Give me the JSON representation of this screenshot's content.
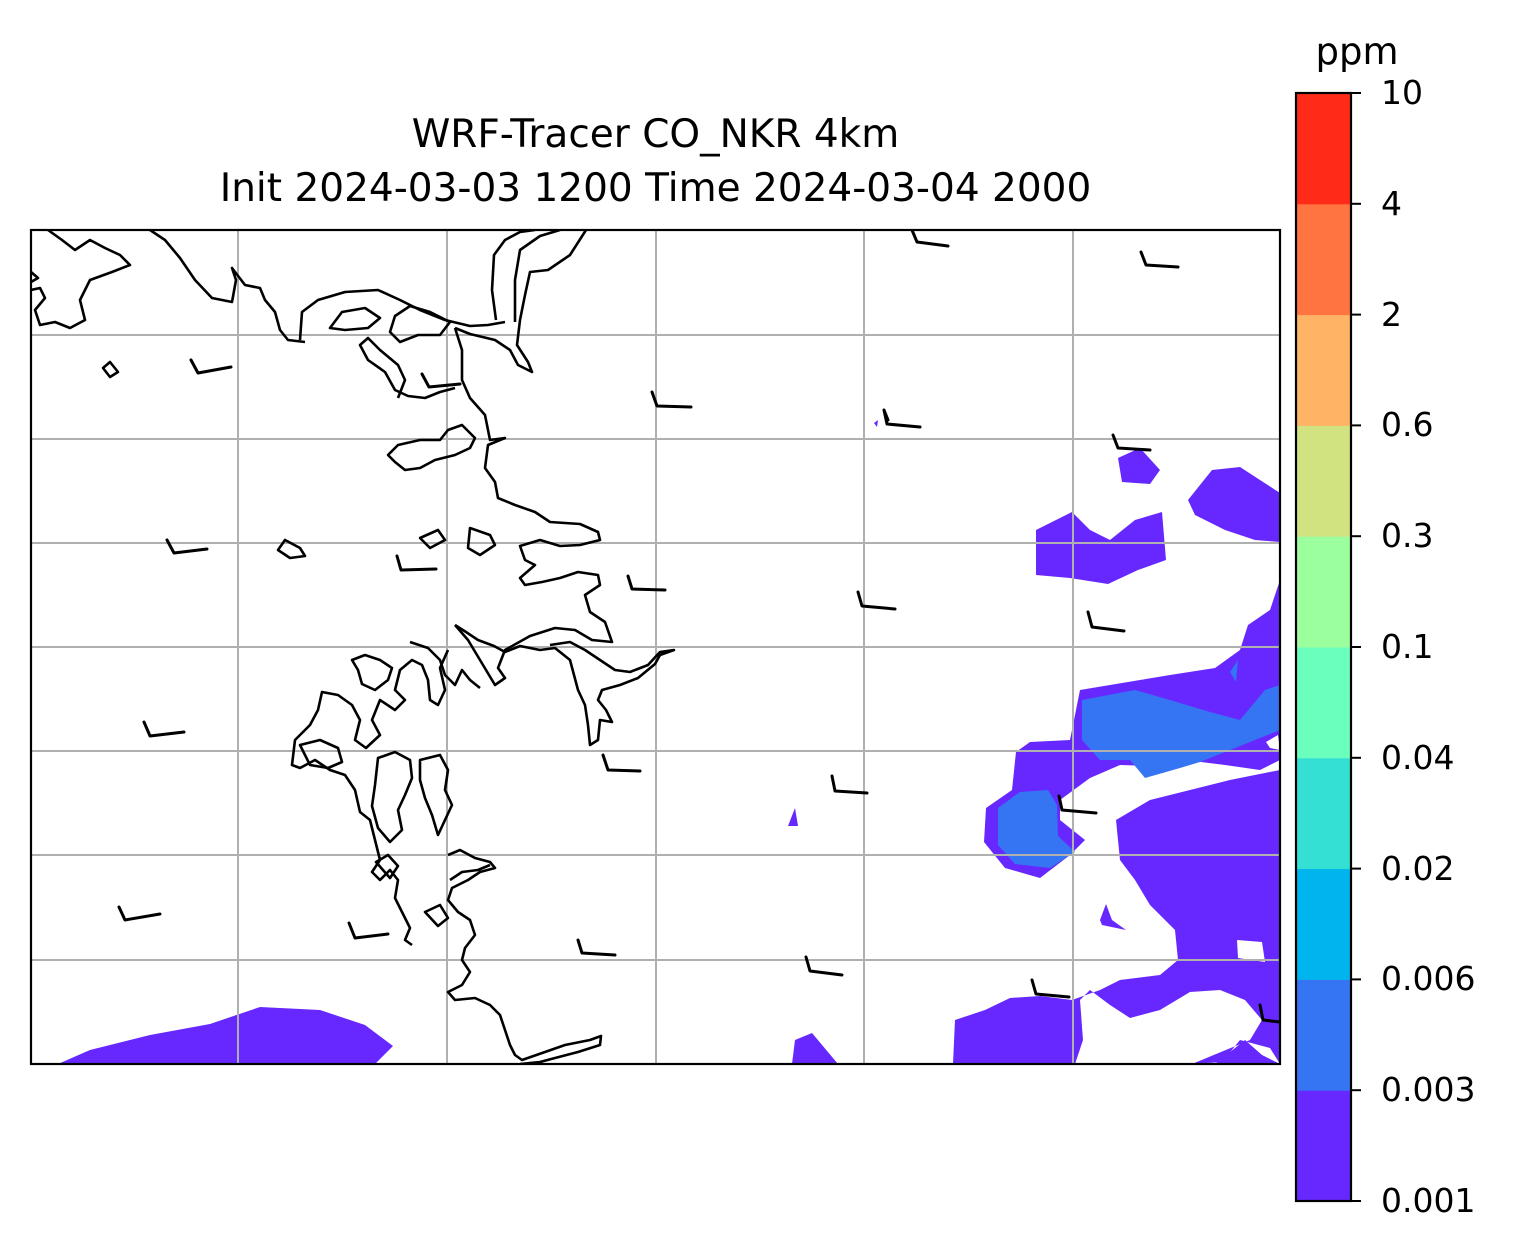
{
  "title": {
    "line1": "WRF-Tracer CO_NKR 4km",
    "line2": "Init 2024-03-03 1200 Time 2024-03-04 2000"
  },
  "colorbar": {
    "unit": "ppm",
    "ticks": [
      "0.001",
      "0.003",
      "0.006",
      "0.02",
      "0.04",
      "0.1",
      "0.3",
      "0.6",
      "2",
      "4",
      "10"
    ],
    "colors": [
      "#6628fe",
      "#3575f4",
      "#00b4ee",
      "#33e0d3",
      "#6bffbd",
      "#9cff9e",
      "#d1e281",
      "#ffb365",
      "#ff7440",
      "#ff2a18"
    ]
  },
  "map": {
    "gridlines": true,
    "gridline_color": "#b0b0b0",
    "coastline_color": "#000000",
    "wind_barb_color": "#000000"
  }
}
